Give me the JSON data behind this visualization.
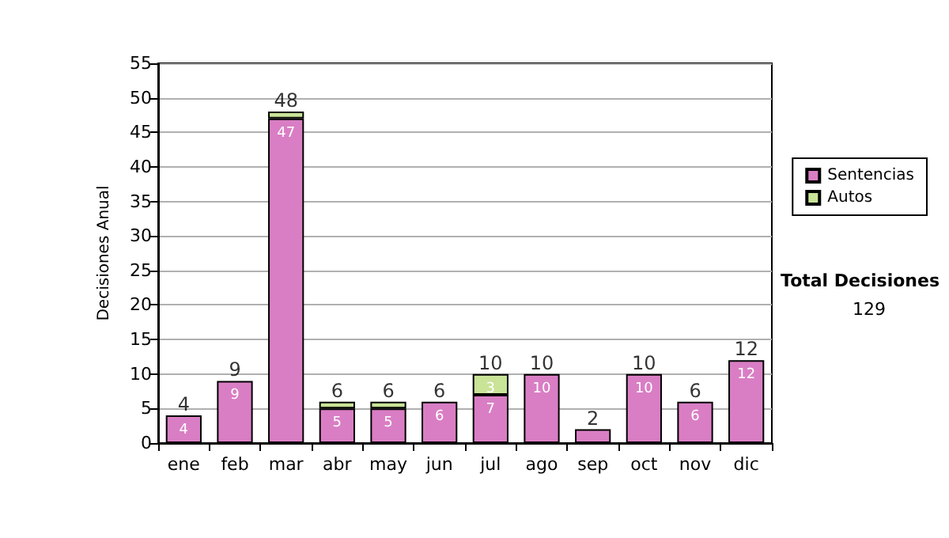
{
  "chart_data": {
    "type": "bar",
    "stacked": true,
    "ylabel": "Decisiones Anual",
    "categories": [
      "ene",
      "feb",
      "mar",
      "abr",
      "may",
      "jun",
      "jul",
      "ago",
      "sep",
      "oct",
      "nov",
      "dic"
    ],
    "series": [
      {
        "name": "Sentencias",
        "color": "#d97ec4",
        "values": [
          4,
          9,
          47,
          5,
          5,
          6,
          7,
          10,
          2,
          10,
          6,
          12
        ],
        "value_labels": [
          "4",
          "9",
          "47",
          "5",
          "5",
          "6",
          "7",
          "10",
          null,
          "10",
          "6",
          "12"
        ]
      },
      {
        "name": "Autos",
        "color": "#c9e397",
        "values": [
          0,
          0,
          1,
          1,
          1,
          0,
          3,
          0,
          0,
          0,
          0,
          0
        ],
        "value_labels": [
          null,
          null,
          null,
          null,
          null,
          null,
          "3",
          null,
          null,
          null,
          null,
          null
        ]
      }
    ],
    "totals": [
      "4",
      "9",
      "48",
      "6",
      "6",
      "6",
      "10",
      "10",
      "2",
      "10",
      "6",
      "12"
    ],
    "ylim": [
      0,
      55
    ],
    "yticks": [
      0,
      5,
      10,
      15,
      20,
      25,
      30,
      35,
      40,
      45,
      50,
      55
    ],
    "grid": "y",
    "legend": "right",
    "annotations": [
      "Total Decisiones",
      "129"
    ]
  }
}
